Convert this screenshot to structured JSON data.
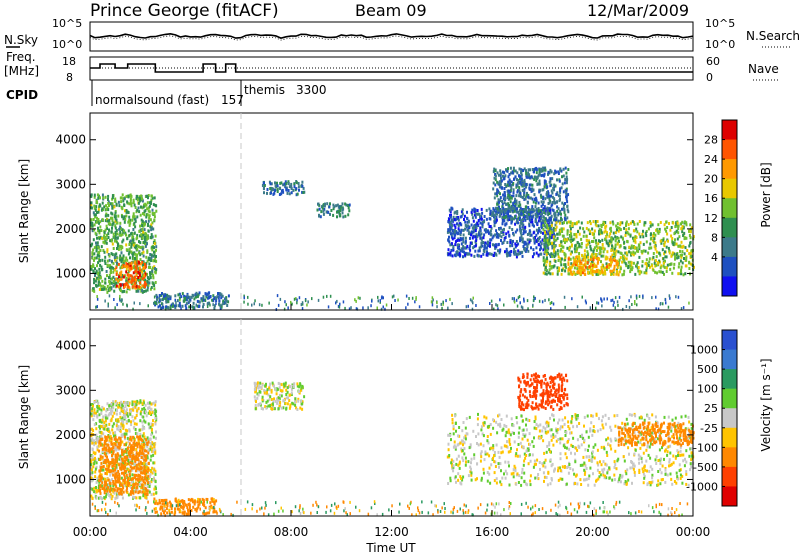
{
  "header": {
    "station": "Prince George (fitACF)",
    "beam": "Beam 09",
    "date": "12/Mar/2009"
  },
  "top_panels": {
    "nsky_label": "N.Sky",
    "nsearch_label": "N.Search",
    "nsky_ticks": [
      "10^5",
      "10^0"
    ],
    "nsearch_ticks": [
      "10^5",
      "10^0"
    ],
    "freq_label": "Freq.",
    "freq_unit": "[MHz]",
    "freq_ticks": [
      "18",
      "8"
    ],
    "nave_label": "Nave",
    "nave_ticks": [
      "60",
      "0"
    ],
    "cpid_label": "CPID",
    "cpid_segments": [
      {
        "name": "normalsound (fast)",
        "id": "157"
      },
      {
        "name": "themis",
        "id": "3300"
      }
    ]
  },
  "axes": {
    "ylabel": "Slant Range [km]",
    "yticks": [
      "4000",
      "3000",
      "2000",
      "1000"
    ],
    "xlabel": "Time UT",
    "xticks": [
      "00:00",
      "04:00",
      "08:00",
      "12:00",
      "16:00",
      "20:00",
      "00:00"
    ]
  },
  "power_colorbar": {
    "label": "Power [dB]",
    "ticks": [
      "28",
      "24",
      "20",
      "16",
      "12",
      "8",
      "4"
    ],
    "colors": [
      "#dd0000",
      "#ff5500",
      "#ff9900",
      "#e8c800",
      "#70c030",
      "#2f8f50",
      "#3c7a8a",
      "#1e50c0",
      "#1010f0"
    ]
  },
  "velocity_colorbar": {
    "label": "Velocity [m s⁻¹]",
    "ticks": [
      "1000",
      "500",
      "100",
      "25",
      "-25",
      "-100",
      "-500",
      "-1000"
    ],
    "colors": [
      "#2a50d0",
      "#3a7ad0",
      "#2a9a60",
      "#60cc30",
      "#c8c8c8",
      "#ffc400",
      "#ff8800",
      "#ff4000",
      "#e00000"
    ]
  },
  "chart_data": [
    {
      "type": "heatmap",
      "title": "Power",
      "xlabel": "Time UT",
      "ylabel": "Slant Range [km]",
      "xlim": [
        "00:00",
        "24:00"
      ],
      "ylim": [
        180,
        4600
      ],
      "colorbar": {
        "label": "Power [dB]",
        "range": [
          0,
          32
        ]
      },
      "regions": [
        {
          "t0": 0.0,
          "t1": 2.6,
          "r0": 600,
          "r1": 2800,
          "value": 14
        },
        {
          "t0": 1.0,
          "t1": 2.2,
          "r0": 700,
          "r1": 1300,
          "value": 26
        },
        {
          "t0": 2.5,
          "t1": 5.5,
          "r0": 250,
          "r1": 600,
          "value": 8
        },
        {
          "t0": 6.8,
          "t1": 8.5,
          "r0": 2800,
          "r1": 3100,
          "value": 8
        },
        {
          "t0": 9.0,
          "t1": 10.3,
          "r0": 2300,
          "r1": 2600,
          "value": 10
        },
        {
          "t0": 14.2,
          "t1": 18.5,
          "r0": 1400,
          "r1": 2500,
          "value": 6
        },
        {
          "t0": 16.0,
          "t1": 19.0,
          "r0": 2200,
          "r1": 3400,
          "value": 8
        },
        {
          "t0": 18.0,
          "t1": 24.0,
          "r0": 1000,
          "r1": 2200,
          "value": 16
        },
        {
          "t0": 19.0,
          "t1": 21.0,
          "r0": 1000,
          "r1": 1400,
          "value": 22
        }
      ]
    },
    {
      "type": "heatmap",
      "title": "Velocity",
      "xlabel": "Time UT",
      "ylabel": "Slant Range [km]",
      "xlim": [
        "00:00",
        "24:00"
      ],
      "ylim": [
        180,
        4600
      ],
      "colorbar": {
        "label": "Velocity [m s⁻¹]",
        "range": [
          -1000,
          1000
        ]
      },
      "regions": [
        {
          "t0": 0.0,
          "t1": 2.6,
          "r0": 600,
          "r1": 2800,
          "value": 0
        },
        {
          "t0": 0.3,
          "t1": 2.3,
          "r0": 700,
          "r1": 2000,
          "value": -300
        },
        {
          "t0": 2.5,
          "t1": 5.0,
          "r0": 250,
          "r1": 600,
          "value": -150
        },
        {
          "t0": 6.5,
          "t1": 8.5,
          "r0": 2600,
          "r1": 3200,
          "value": 0
        },
        {
          "t0": 14.2,
          "t1": 24.0,
          "r0": 900,
          "r1": 2500,
          "value": 0
        },
        {
          "t0": 17.0,
          "t1": 19.0,
          "r0": 2600,
          "r1": 3400,
          "value": -800
        },
        {
          "t0": 21.0,
          "t1": 24.0,
          "r0": 1800,
          "r1": 2300,
          "value": -300
        }
      ]
    }
  ]
}
